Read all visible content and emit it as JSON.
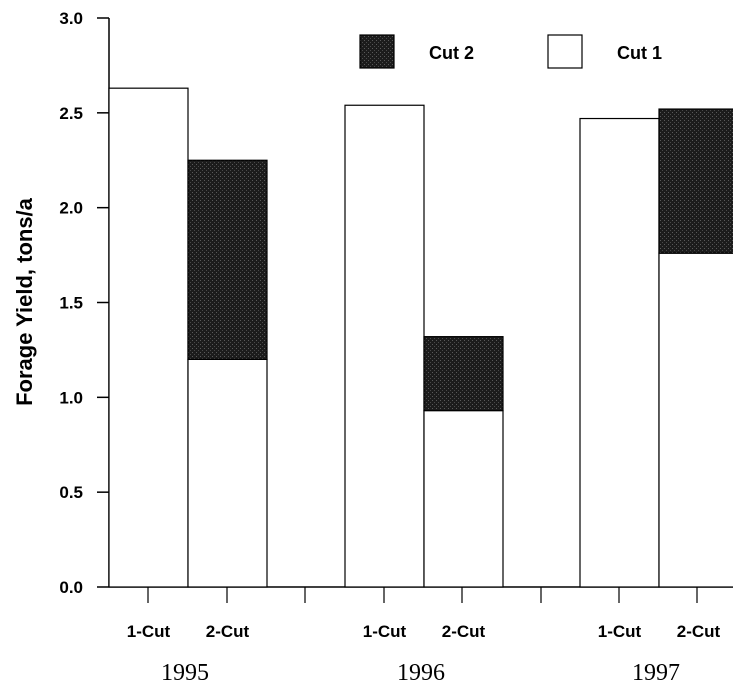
{
  "chart_data": {
    "type": "bar",
    "stacked": true,
    "ylabel": "Forage Yield, tons/a",
    "xlabel": "",
    "ylim": [
      0,
      3.0
    ],
    "yticks": [
      0.0,
      0.5,
      1.0,
      1.5,
      2.0,
      2.5,
      3.0
    ],
    "ytick_labels": [
      "0.0",
      "0.5",
      "1.0",
      "1.5",
      "2.0",
      "2.5",
      "3.0"
    ],
    "legend": {
      "placement": "top-right",
      "items": [
        {
          "label": "Cut 2",
          "color": "#1a1a1a",
          "pattern": "stipple"
        },
        {
          "label": "Cut 1",
          "color": "#ffffff"
        }
      ]
    },
    "groups": [
      {
        "year": "1995",
        "bars": [
          {
            "label": "1-Cut",
            "cut1": 2.63,
            "cut2": 0
          },
          {
            "label": "2-Cut",
            "cut1": 1.2,
            "cut2": 1.05
          }
        ]
      },
      {
        "year": "1996",
        "bars": [
          {
            "label": "1-Cut",
            "cut1": 2.54,
            "cut2": 0
          },
          {
            "label": "2-Cut",
            "cut1": 0.93,
            "cut2": 0.39
          }
        ]
      },
      {
        "year": "1997",
        "bars": [
          {
            "label": "1-Cut",
            "cut1": 2.47,
            "cut2": 0
          },
          {
            "label": "2-Cut",
            "cut1": 1.76,
            "cut2": 0.76
          }
        ]
      }
    ]
  }
}
